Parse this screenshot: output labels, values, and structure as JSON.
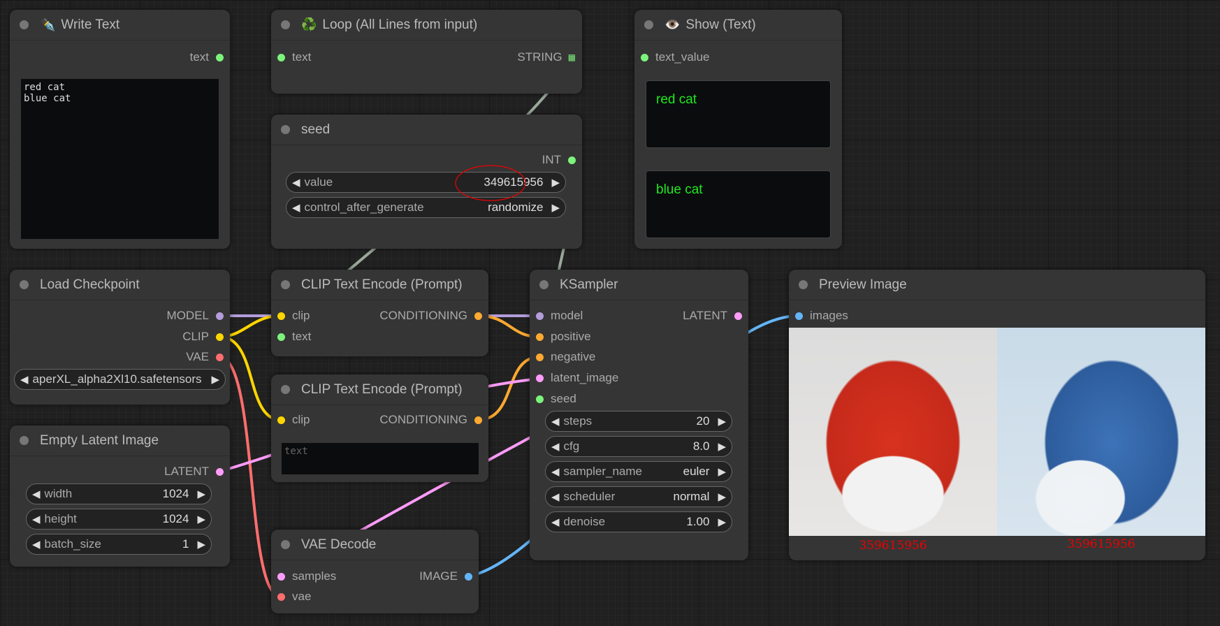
{
  "colors": {
    "string": "#9aa89a",
    "model": "#b39ddb",
    "clip": "#ffd500",
    "vae": "#ff6e6e",
    "conditioning": "#ffa931",
    "latent": "#ff9cf9",
    "image": "#64b5f6",
    "int": "#7cf47c",
    "caption": "#ee0000"
  },
  "write_text": {
    "title": "Write Text",
    "icon": "pen-nib-icon",
    "out": "text",
    "value": "red cat\nblue cat"
  },
  "loop": {
    "title": "Loop (All Lines from input)",
    "icon": "recycle-icon",
    "in": "text",
    "out": "STRING"
  },
  "show": {
    "title": "Show (Text)",
    "icon": "eye-icon",
    "in": "text_value",
    "values": [
      "red cat",
      "blue cat"
    ]
  },
  "seed": {
    "title": "seed",
    "out": "INT",
    "widgets": [
      {
        "label": "value",
        "value": "349615956"
      },
      {
        "label": "control_after_generate",
        "value": "randomize"
      }
    ]
  },
  "load_checkpoint": {
    "title": "Load Checkpoint",
    "outs": [
      "MODEL",
      "CLIP",
      "VAE"
    ],
    "ckpt_name": "aperXL_alpha2Xl10.safetensors"
  },
  "clip1": {
    "title": "CLIP Text Encode (Prompt)",
    "ins": [
      "clip",
      "text"
    ],
    "out": "CONDITIONING"
  },
  "clip2": {
    "title": "CLIP Text Encode (Prompt)",
    "ins": [
      "clip"
    ],
    "out": "CONDITIONING",
    "placeholder": "text"
  },
  "ksampler": {
    "title": "KSampler",
    "ins": [
      "model",
      "positive",
      "negative",
      "latent_image",
      "seed"
    ],
    "out": "LATENT",
    "widgets": [
      {
        "label": "steps",
        "value": "20"
      },
      {
        "label": "cfg",
        "value": "8.0"
      },
      {
        "label": "sampler_name",
        "value": "euler"
      },
      {
        "label": "scheduler",
        "value": "normal"
      },
      {
        "label": "denoise",
        "value": "1.00"
      }
    ]
  },
  "preview": {
    "title": "Preview Image",
    "in": "images",
    "captions": [
      "359615956",
      "359615956"
    ]
  },
  "empty_latent": {
    "title": "Empty Latent Image",
    "out": "LATENT",
    "widgets": [
      {
        "label": "width",
        "value": "1024"
      },
      {
        "label": "height",
        "value": "1024"
      },
      {
        "label": "batch_size",
        "value": "1"
      }
    ]
  },
  "vae_decode": {
    "title": "VAE Decode",
    "ins": [
      "samples",
      "vae"
    ],
    "out": "IMAGE"
  }
}
